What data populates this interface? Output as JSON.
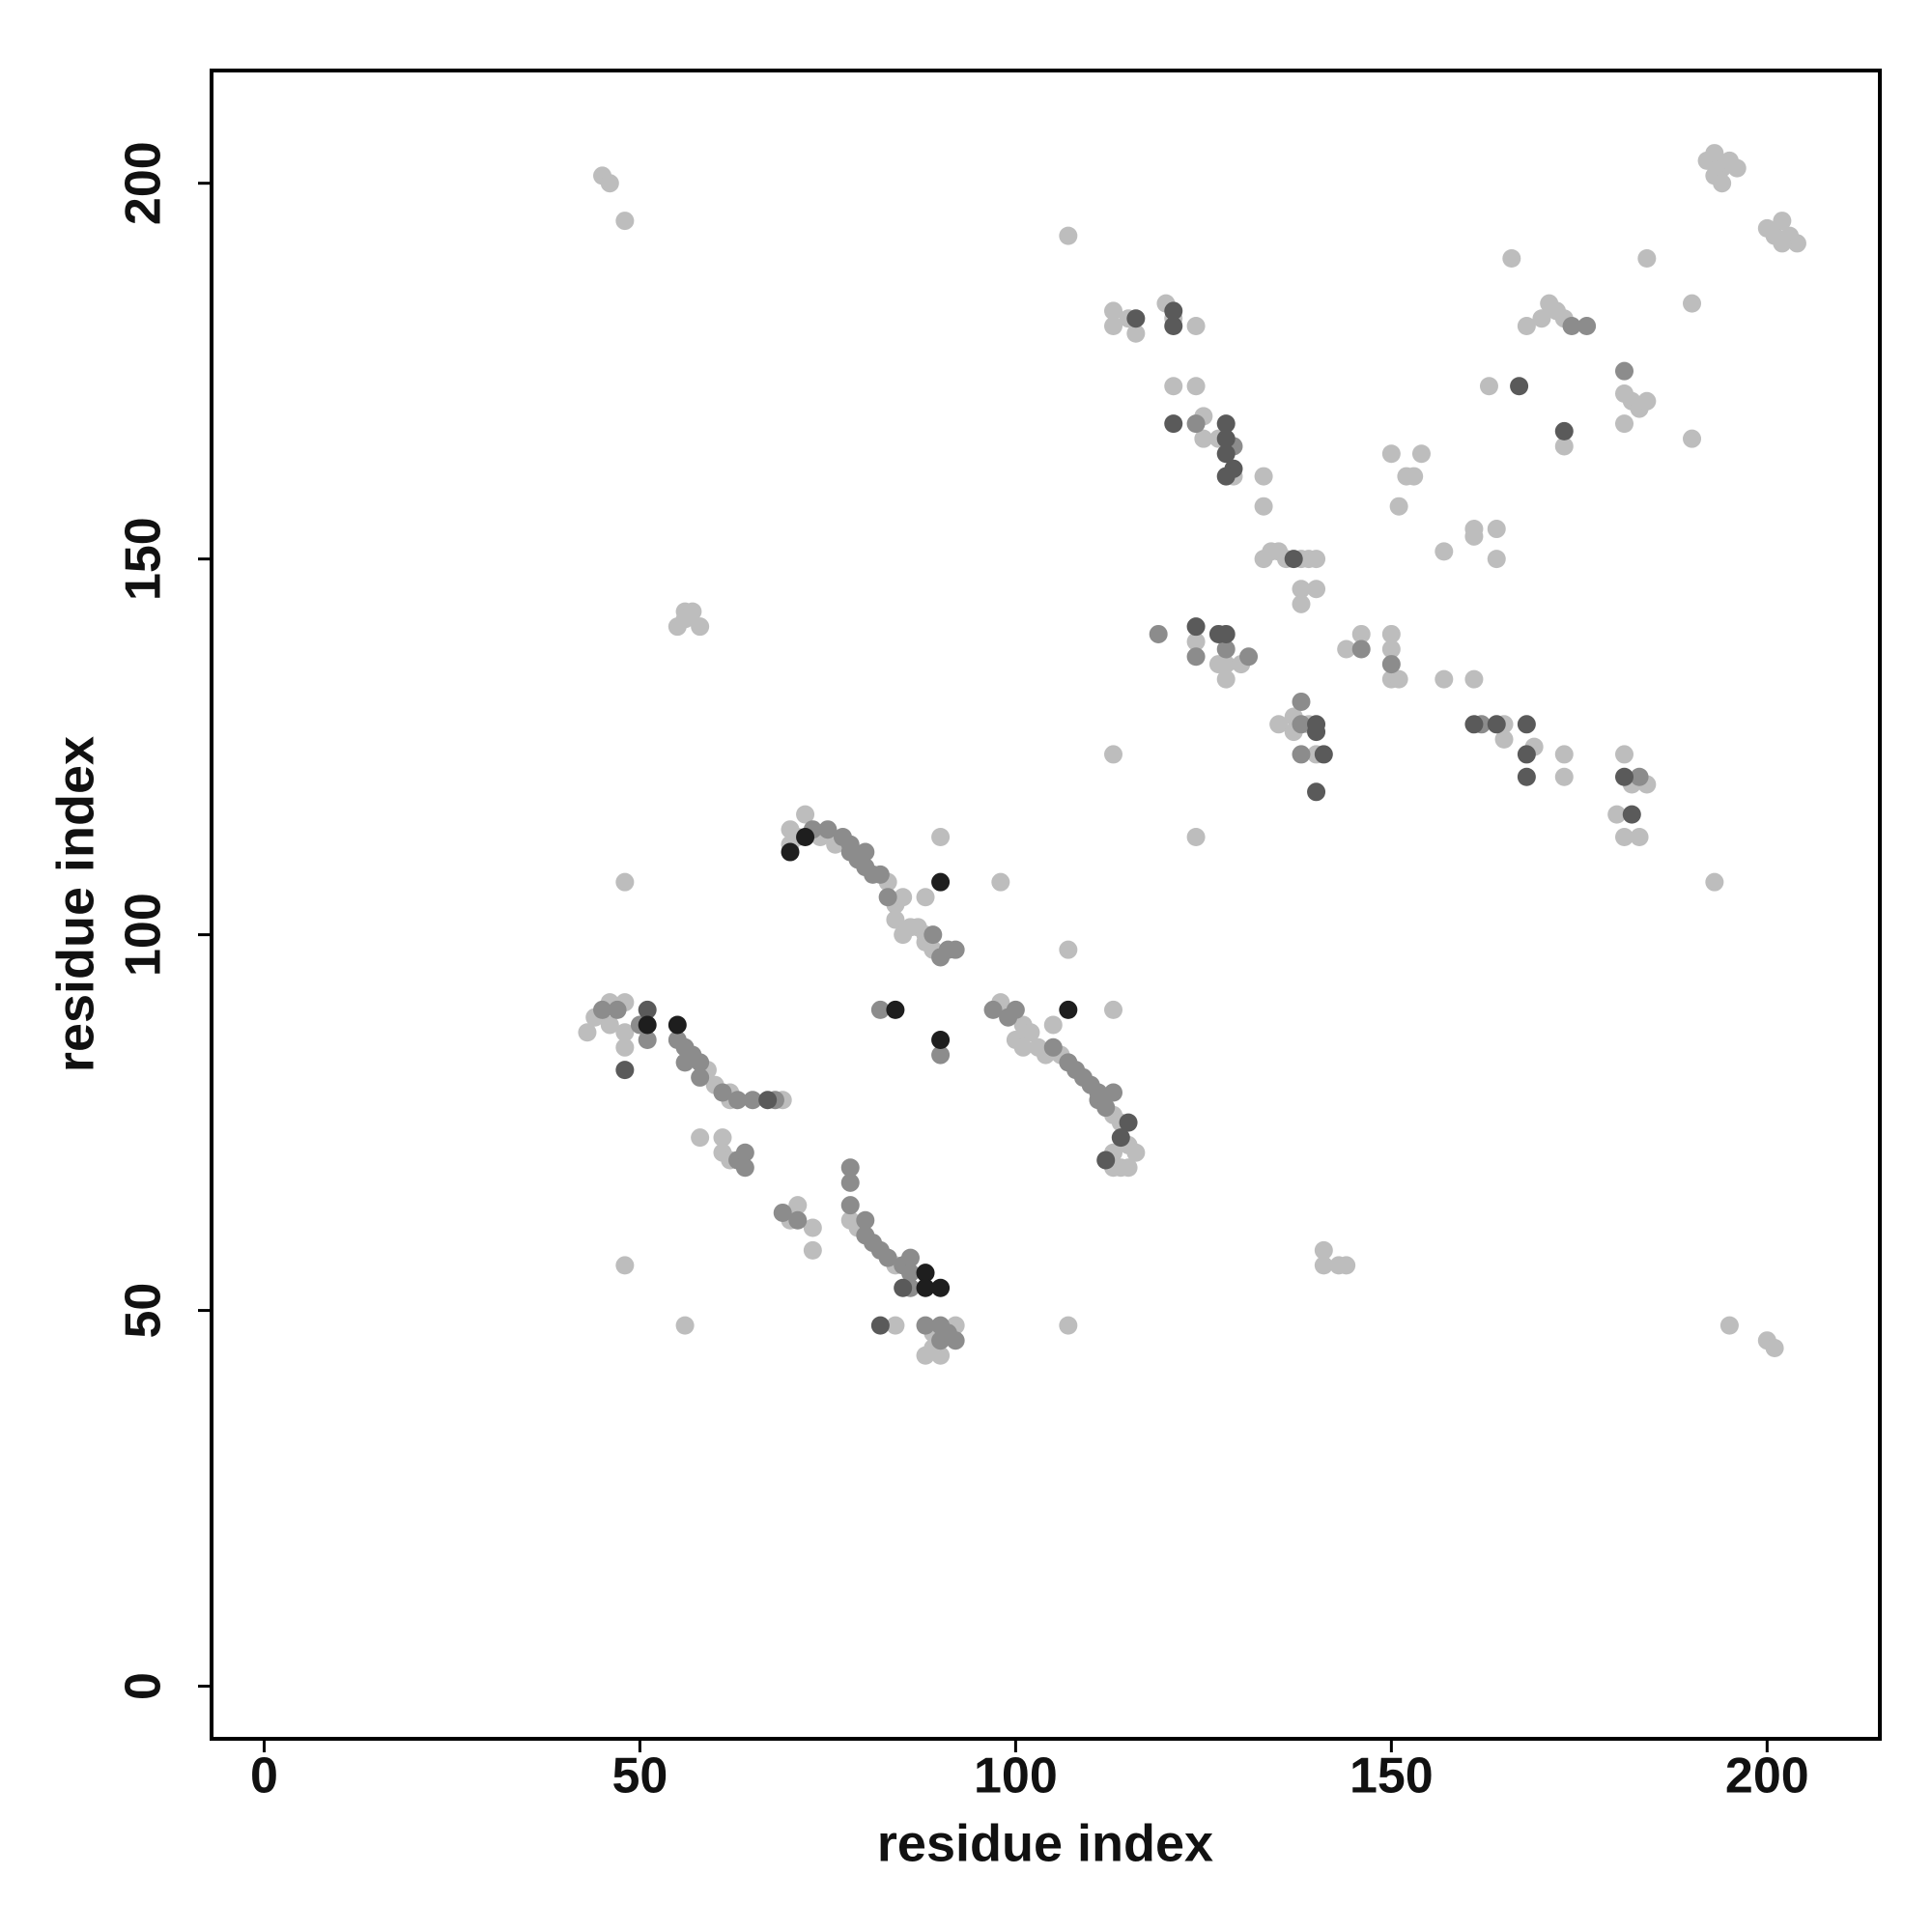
{
  "chart_data": {
    "type": "scatter",
    "x_label": "residue index",
    "y_label": "residue index",
    "xlim": [
      -7,
      215
    ],
    "ylim": [
      -7,
      215
    ],
    "xticks": [
      0,
      50,
      100,
      150,
      200
    ],
    "yticks": [
      0,
      50,
      100,
      150,
      200
    ],
    "grid": false,
    "series": [
      {
        "color": "#bdbdbd",
        "x": [
          45,
          46,
          48,
          56,
          56,
          55,
          58,
          57,
          48,
          107,
          192,
          193,
          194,
          195,
          196,
          193,
          194,
          200,
          201,
          202,
          203,
          204,
          202,
          166,
          184,
          190,
          171,
          172,
          173,
          170,
          168,
          163,
          181,
          182,
          183,
          184,
          181,
          173,
          190,
          113,
          113,
          115,
          116,
          120,
          121,
          124,
          121,
          124,
          125,
          125,
          127,
          129,
          133,
          133,
          134,
          135,
          133,
          136,
          138,
          139,
          140,
          138,
          138,
          140,
          150,
          152,
          153,
          154,
          151,
          157,
          161,
          161,
          164,
          164,
          124,
          128,
          127,
          128,
          130,
          144,
          146,
          150,
          150,
          150,
          151,
          157,
          161,
          135,
          137,
          137,
          139,
          140,
          165,
          165,
          169,
          173,
          173,
          113,
          124,
          181,
          182,
          184,
          180,
          181,
          183,
          193,
          195,
          200,
          201,
          107,
          56,
          48,
          141,
          141,
          143,
          144,
          98,
          90,
          70,
          70,
          71,
          72,
          74,
          76,
          83,
          84,
          85,
          84,
          85,
          86,
          87,
          88,
          88,
          89,
          88,
          113,
          107,
          43,
          44,
          46,
          48,
          46,
          48,
          48,
          59,
          60,
          62,
          62,
          69,
          58,
          61,
          61,
          62,
          98,
          101,
          102,
          100,
          101,
          103,
          104,
          105,
          106,
          113,
          114,
          115,
          116,
          113,
          113,
          114,
          115,
          70,
          71,
          73,
          73,
          78,
          79,
          84,
          84,
          89,
          89,
          88,
          90,
          92
        ],
        "values": [
          201,
          200,
          195,
          143,
          142,
          141,
          141,
          143,
          107,
          193,
          203,
          204,
          202,
          203,
          202,
          201,
          200,
          194,
          193,
          195,
          193,
          192,
          192,
          190,
          190,
          184,
          184,
          183,
          182,
          182,
          181,
          173,
          172,
          171,
          170,
          171,
          168,
          165,
          166,
          183,
          181,
          182,
          180,
          184,
          182,
          181,
          173,
          173,
          169,
          166,
          166,
          161,
          161,
          157,
          151,
          151,
          150,
          150,
          150,
          150,
          150,
          146,
          144,
          146,
          164,
          161,
          161,
          164,
          157,
          151,
          154,
          153,
          154,
          150,
          139,
          136,
          136,
          134,
          136,
          138,
          140,
          140,
          138,
          134,
          134,
          134,
          134,
          128,
          129,
          127,
          128,
          124,
          126,
          128,
          125,
          124,
          121,
          124,
          113,
          124,
          120,
          120,
          116,
          113,
          113,
          107,
          48,
          46,
          45,
          48,
          48,
          56,
          58,
          56,
          56,
          56,
          107,
          113,
          114,
          112,
          113,
          116,
          113,
          112,
          107,
          104,
          105,
          102,
          100,
          101,
          101,
          100,
          99,
          98,
          105,
          90,
          98,
          87,
          89,
          91,
          91,
          88,
          87,
          85,
          82,
          80,
          79,
          78,
          78,
          73,
          73,
          71,
          70,
          91,
          88,
          87,
          86,
          85,
          85,
          84,
          88,
          84,
          76,
          75,
          72,
          71,
          71,
          69,
          69,
          69,
          62,
          64,
          61,
          58,
          62,
          61,
          56,
          48,
          47,
          45,
          44,
          44,
          48
        ]
      },
      {
        "color": "#8c8c8c",
        "x": [
          174,
          176,
          181,
          124,
          129,
          119,
          124,
          128,
          131,
          146,
          150,
          138,
          138,
          138,
          162,
          183,
          73,
          75,
          77,
          78,
          78,
          79,
          80,
          80,
          81,
          82,
          83,
          89,
          90,
          91,
          92,
          82,
          90,
          45,
          47,
          50,
          51,
          55,
          56,
          57,
          56,
          58,
          58,
          61,
          63,
          65,
          68,
          63,
          64,
          64,
          97,
          99,
          100,
          105,
          107,
          108,
          109,
          110,
          111,
          111,
          112,
          113,
          69,
          71,
          78,
          78,
          78,
          80,
          80,
          81,
          82,
          83,
          85,
          86,
          86,
          86,
          88,
          90,
          90,
          91,
          92
        ],
        "values": [
          181,
          181,
          175,
          168,
          165,
          140,
          137,
          138,
          137,
          138,
          136,
          131,
          128,
          124,
          128,
          121,
          114,
          114,
          113,
          112,
          111,
          110,
          111,
          109,
          108,
          108,
          105,
          100,
          97,
          98,
          98,
          90,
          84,
          90,
          90,
          88,
          86,
          86,
          85,
          84,
          83,
          83,
          81,
          79,
          78,
          78,
          78,
          70,
          71,
          69,
          90,
          89,
          90,
          85,
          83,
          82,
          81,
          80,
          79,
          78,
          77,
          79,
          63,
          62,
          69,
          67,
          64,
          62,
          60,
          59,
          58,
          57,
          56,
          57,
          55,
          53,
          48,
          46,
          48,
          47,
          46
        ]
      },
      {
        "color": "#5a5a5a",
        "x": [
          167,
          173,
          116,
          121,
          121,
          121,
          128,
          128,
          128,
          129,
          128,
          137,
          124,
          127,
          128,
          140,
          140,
          141,
          140,
          161,
          164,
          168,
          168,
          168,
          181,
          182,
          51,
          48,
          67,
          115,
          114,
          112,
          85,
          82
        ],
        "values": [
          173,
          167,
          182,
          183,
          181,
          168,
          168,
          166,
          164,
          162,
          161,
          150,
          141,
          140,
          140,
          128,
          127,
          124,
          119,
          128,
          128,
          128,
          124,
          121,
          121,
          116,
          90,
          82,
          78,
          75,
          73,
          70,
          53,
          48
        ]
      },
      {
        "color": "#1e1e1e",
        "x": [
          72,
          70,
          90,
          84,
          90,
          107,
          51,
          55,
          88,
          88,
          90
        ],
        "values": [
          113,
          111,
          107,
          90,
          86,
          90,
          88,
          88,
          55,
          53,
          53
        ]
      }
    ]
  }
}
